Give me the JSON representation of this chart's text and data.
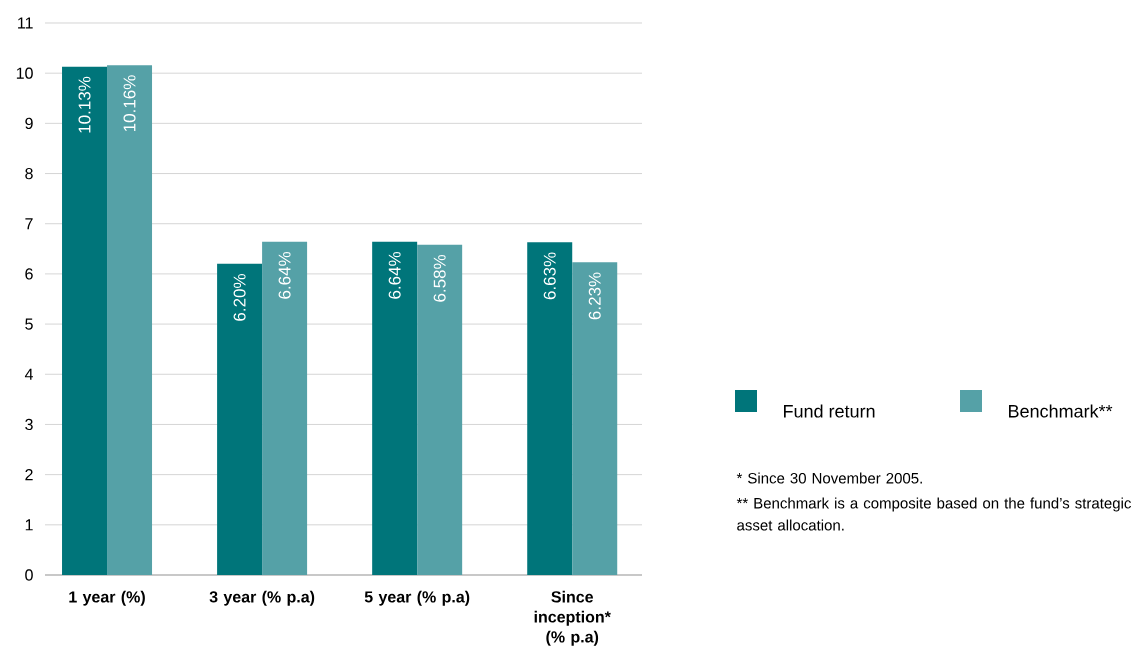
{
  "chart_data": {
    "type": "bar",
    "categories": [
      "1 year (%)",
      "3 year (% p.a)",
      "5 year (% p.a)",
      "Since inception* (% p.a)"
    ],
    "series": [
      {
        "name": "Fund return",
        "color": "#00757a",
        "values": [
          10.13,
          6.2,
          6.64,
          6.63
        ],
        "value_labels": [
          "10.13%",
          "6.20%",
          "6.64%",
          "6.63%"
        ]
      },
      {
        "name": "Benchmark**",
        "color": "#55a1a7",
        "values": [
          10.16,
          6.64,
          6.58,
          6.23
        ],
        "value_labels": [
          "10.16%",
          "6.64%",
          "6.58%",
          "6.23%"
        ]
      }
    ],
    "ylim": [
      0,
      11
    ],
    "yticks": [
      0,
      1,
      2,
      3,
      4,
      5,
      6,
      7,
      8,
      9,
      10,
      11
    ],
    "grid": "y",
    "legend": "right",
    "annotations": [
      "* Since 30 November 2005.",
      "** Benchmark is a composite based on the fund’s strategic asset allocation."
    ]
  }
}
